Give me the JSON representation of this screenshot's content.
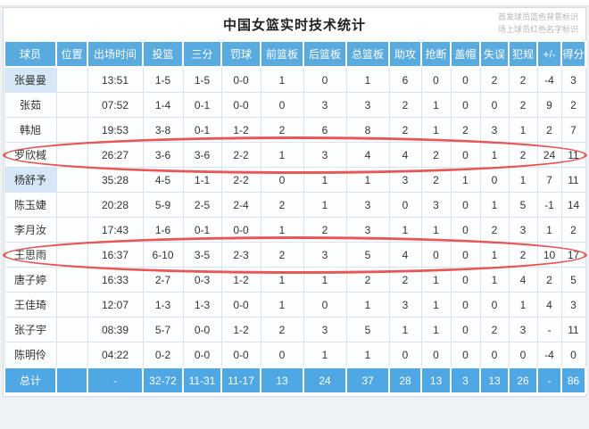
{
  "page": {
    "title": "中国女篮实时技术统计",
    "legend_line1": "首发球员蓝色背景标识",
    "legend_line2": "场上球员红色名字标识"
  },
  "colors": {
    "header_bg": "#58aadf",
    "total_bg": "#4fa7e3",
    "starter_bg": "#d4e8f8",
    "annotation_red": "#e64444"
  },
  "table": {
    "columns": [
      "球员",
      "位置",
      "出场时间",
      "投篮",
      "三分",
      "罚球",
      "前篮板",
      "后篮板",
      "总篮板",
      "助攻",
      "抢断",
      "盖帽",
      "失误",
      "犯规",
      "+/-",
      "得分"
    ],
    "rows": [
      {
        "cells": [
          "张曼曼",
          "",
          "13:51",
          "1-5",
          "1-5",
          "0-0",
          "1",
          "0",
          "1",
          "6",
          "0",
          "0",
          "2",
          "2",
          "-4",
          "3"
        ],
        "starter": true,
        "circled": false
      },
      {
        "cells": [
          "张茹",
          "",
          "07:52",
          "1-4",
          "0-1",
          "0-0",
          "0",
          "3",
          "3",
          "2",
          "1",
          "0",
          "0",
          "2",
          "9",
          "2"
        ],
        "starter": false,
        "circled": false
      },
      {
        "cells": [
          "韩旭",
          "",
          "19:53",
          "3-8",
          "0-1",
          "1-2",
          "2",
          "6",
          "8",
          "2",
          "1",
          "2",
          "3",
          "1",
          "2",
          "7"
        ],
        "starter": false,
        "circled": false
      },
      {
        "cells": [
          "罗欣棫",
          "",
          "26:27",
          "3-6",
          "3-6",
          "2-2",
          "1",
          "3",
          "4",
          "4",
          "2",
          "0",
          "1",
          "2",
          "24",
          "11"
        ],
        "starter": false,
        "circled": true
      },
      {
        "cells": [
          "杨舒予",
          "",
          "35:28",
          "4-5",
          "1-1",
          "2-2",
          "0",
          "1",
          "1",
          "3",
          "2",
          "1",
          "0",
          "1",
          "7",
          "11"
        ],
        "starter": true,
        "circled": false
      },
      {
        "cells": [
          "陈玉婕",
          "",
          "20:28",
          "5-9",
          "2-5",
          "2-4",
          "2",
          "1",
          "3",
          "0",
          "3",
          "0",
          "1",
          "5",
          "-1",
          "14"
        ],
        "starter": false,
        "circled": false
      },
      {
        "cells": [
          "李月汝",
          "",
          "17:43",
          "1-6",
          "0-1",
          "0-0",
          "1",
          "2",
          "3",
          "1",
          "1",
          "0",
          "2",
          "3",
          "1",
          "2"
        ],
        "starter": false,
        "circled": false
      },
      {
        "cells": [
          "王思雨",
          "",
          "16:37",
          "6-10",
          "3-5",
          "2-3",
          "2",
          "3",
          "5",
          "4",
          "0",
          "0",
          "1",
          "2",
          "10",
          "17"
        ],
        "starter": false,
        "circled": true
      },
      {
        "cells": [
          "唐子婷",
          "",
          "16:33",
          "2-7",
          "0-3",
          "1-2",
          "1",
          "1",
          "2",
          "2",
          "1",
          "0",
          "1",
          "4",
          "2",
          "5"
        ],
        "starter": false,
        "circled": false
      },
      {
        "cells": [
          "王佳琦",
          "",
          "12:07",
          "1-3",
          "1-3",
          "0-0",
          "1",
          "0",
          "1",
          "3",
          "1",
          "0",
          "0",
          "1",
          "4",
          "3"
        ],
        "starter": false,
        "circled": false
      },
      {
        "cells": [
          "张子宇",
          "",
          "08:39",
          "5-7",
          "0-0",
          "1-2",
          "2",
          "3",
          "5",
          "1",
          "1",
          "0",
          "2",
          "3",
          "-",
          "11"
        ],
        "starter": false,
        "circled": false
      },
      {
        "cells": [
          "陈明伶",
          "",
          "04:22",
          "0-2",
          "0-0",
          "0-0",
          "0",
          "1",
          "1",
          "0",
          "0",
          "0",
          "0",
          "0",
          "-4",
          "0"
        ],
        "starter": false,
        "circled": false
      }
    ],
    "total": {
      "cells": [
        "总计",
        "",
        "-",
        "32-72",
        "11-31",
        "11-17",
        "13",
        "24",
        "37",
        "28",
        "13",
        "3",
        "13",
        "26",
        "-",
        "86"
      ]
    }
  }
}
